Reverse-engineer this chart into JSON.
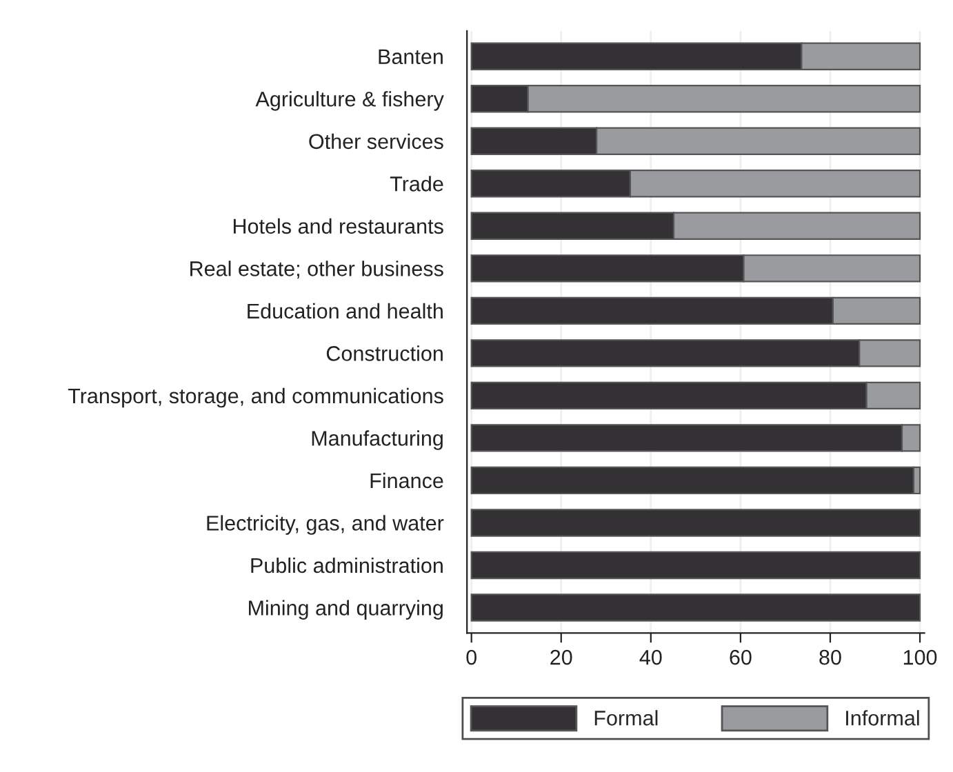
{
  "chart_data": {
    "type": "bar",
    "orientation": "horizontal",
    "stacked": true,
    "categories": [
      "Banten",
      "Agriculture & fishery",
      "Other services",
      "Trade",
      "Hotels and restaurants",
      "Real estate; other business",
      "Education and health",
      "Construction",
      "Transport, storage, and communications",
      "Manufacturing",
      "Finance",
      "Electricity, gas, and water",
      "Public administration",
      "Mining and quarrying"
    ],
    "series": [
      {
        "name": "Formal",
        "color": "#333133",
        "values": [
          73.6,
          12.6,
          27.9,
          35.4,
          45.1,
          60.7,
          80.6,
          86.5,
          88.1,
          96.0,
          98.6,
          100,
          100,
          100
        ]
      },
      {
        "name": "Informal",
        "color": "#9a9b9e",
        "values": [
          26.4,
          87.4,
          72.1,
          64.6,
          54.9,
          39.3,
          19.4,
          13.5,
          11.9,
          4.0,
          1.4,
          null,
          null,
          null
        ]
      }
    ],
    "xlim": [
      -1,
      101
    ],
    "xticks": [
      0,
      20,
      40,
      60,
      80,
      100
    ],
    "grid": "x",
    "legend": "bottom"
  }
}
